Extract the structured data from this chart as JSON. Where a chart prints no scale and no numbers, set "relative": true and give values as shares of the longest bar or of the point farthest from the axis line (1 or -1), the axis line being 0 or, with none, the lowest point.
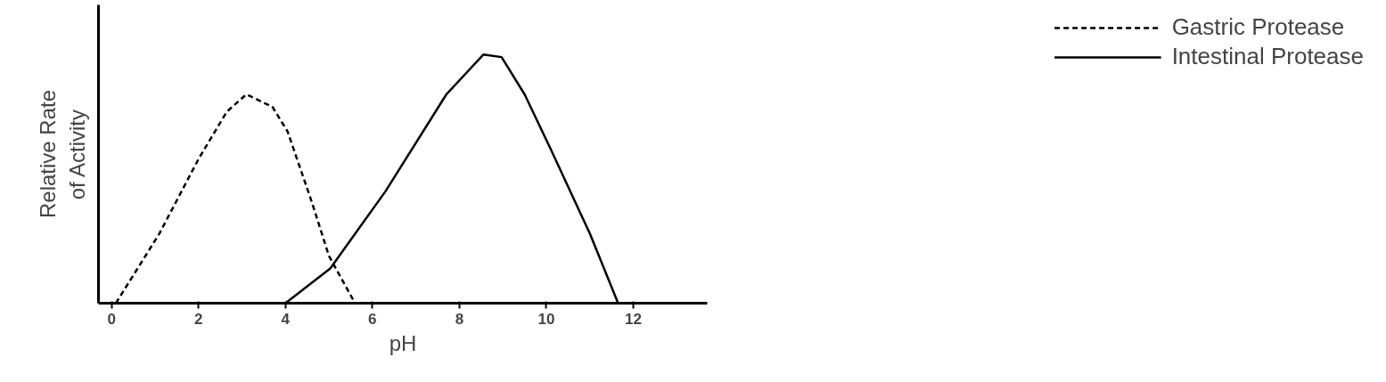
{
  "chart_data": {
    "type": "line",
    "relative": true,
    "xlabel": "pH",
    "ylabel": "Relative Rate\nof Activity",
    "xlim": [
      -0.3,
      13.7
    ],
    "xticks": [
      0,
      2,
      4,
      6,
      8,
      10,
      12
    ],
    "legend": "right",
    "grid": false,
    "marker": "none",
    "series": [
      {
        "name": "Gastric Protease",
        "color": "#000000",
        "line_style": "dashed",
        "x": [
          0.1,
          1.1,
          2,
          2.65,
          3.1,
          3.7,
          4.05,
          4.6,
          5.0,
          5.6
        ],
        "values": [
          0,
          0.28,
          0.58,
          0.77,
          0.84,
          0.79,
          0.69,
          0.41,
          0.19,
          0
        ]
      },
      {
        "name": "Intestinal Protease",
        "color": "#000000",
        "line_style": "solid",
        "x": [
          4,
          5.03,
          6.3,
          7.7,
          8.55,
          8.97,
          9.5,
          10.1,
          11,
          11.65
        ],
        "values": [
          0,
          0.14,
          0.45,
          0.84,
          1,
          0.99,
          0.84,
          0.62,
          0.28,
          0
        ]
      }
    ]
  }
}
